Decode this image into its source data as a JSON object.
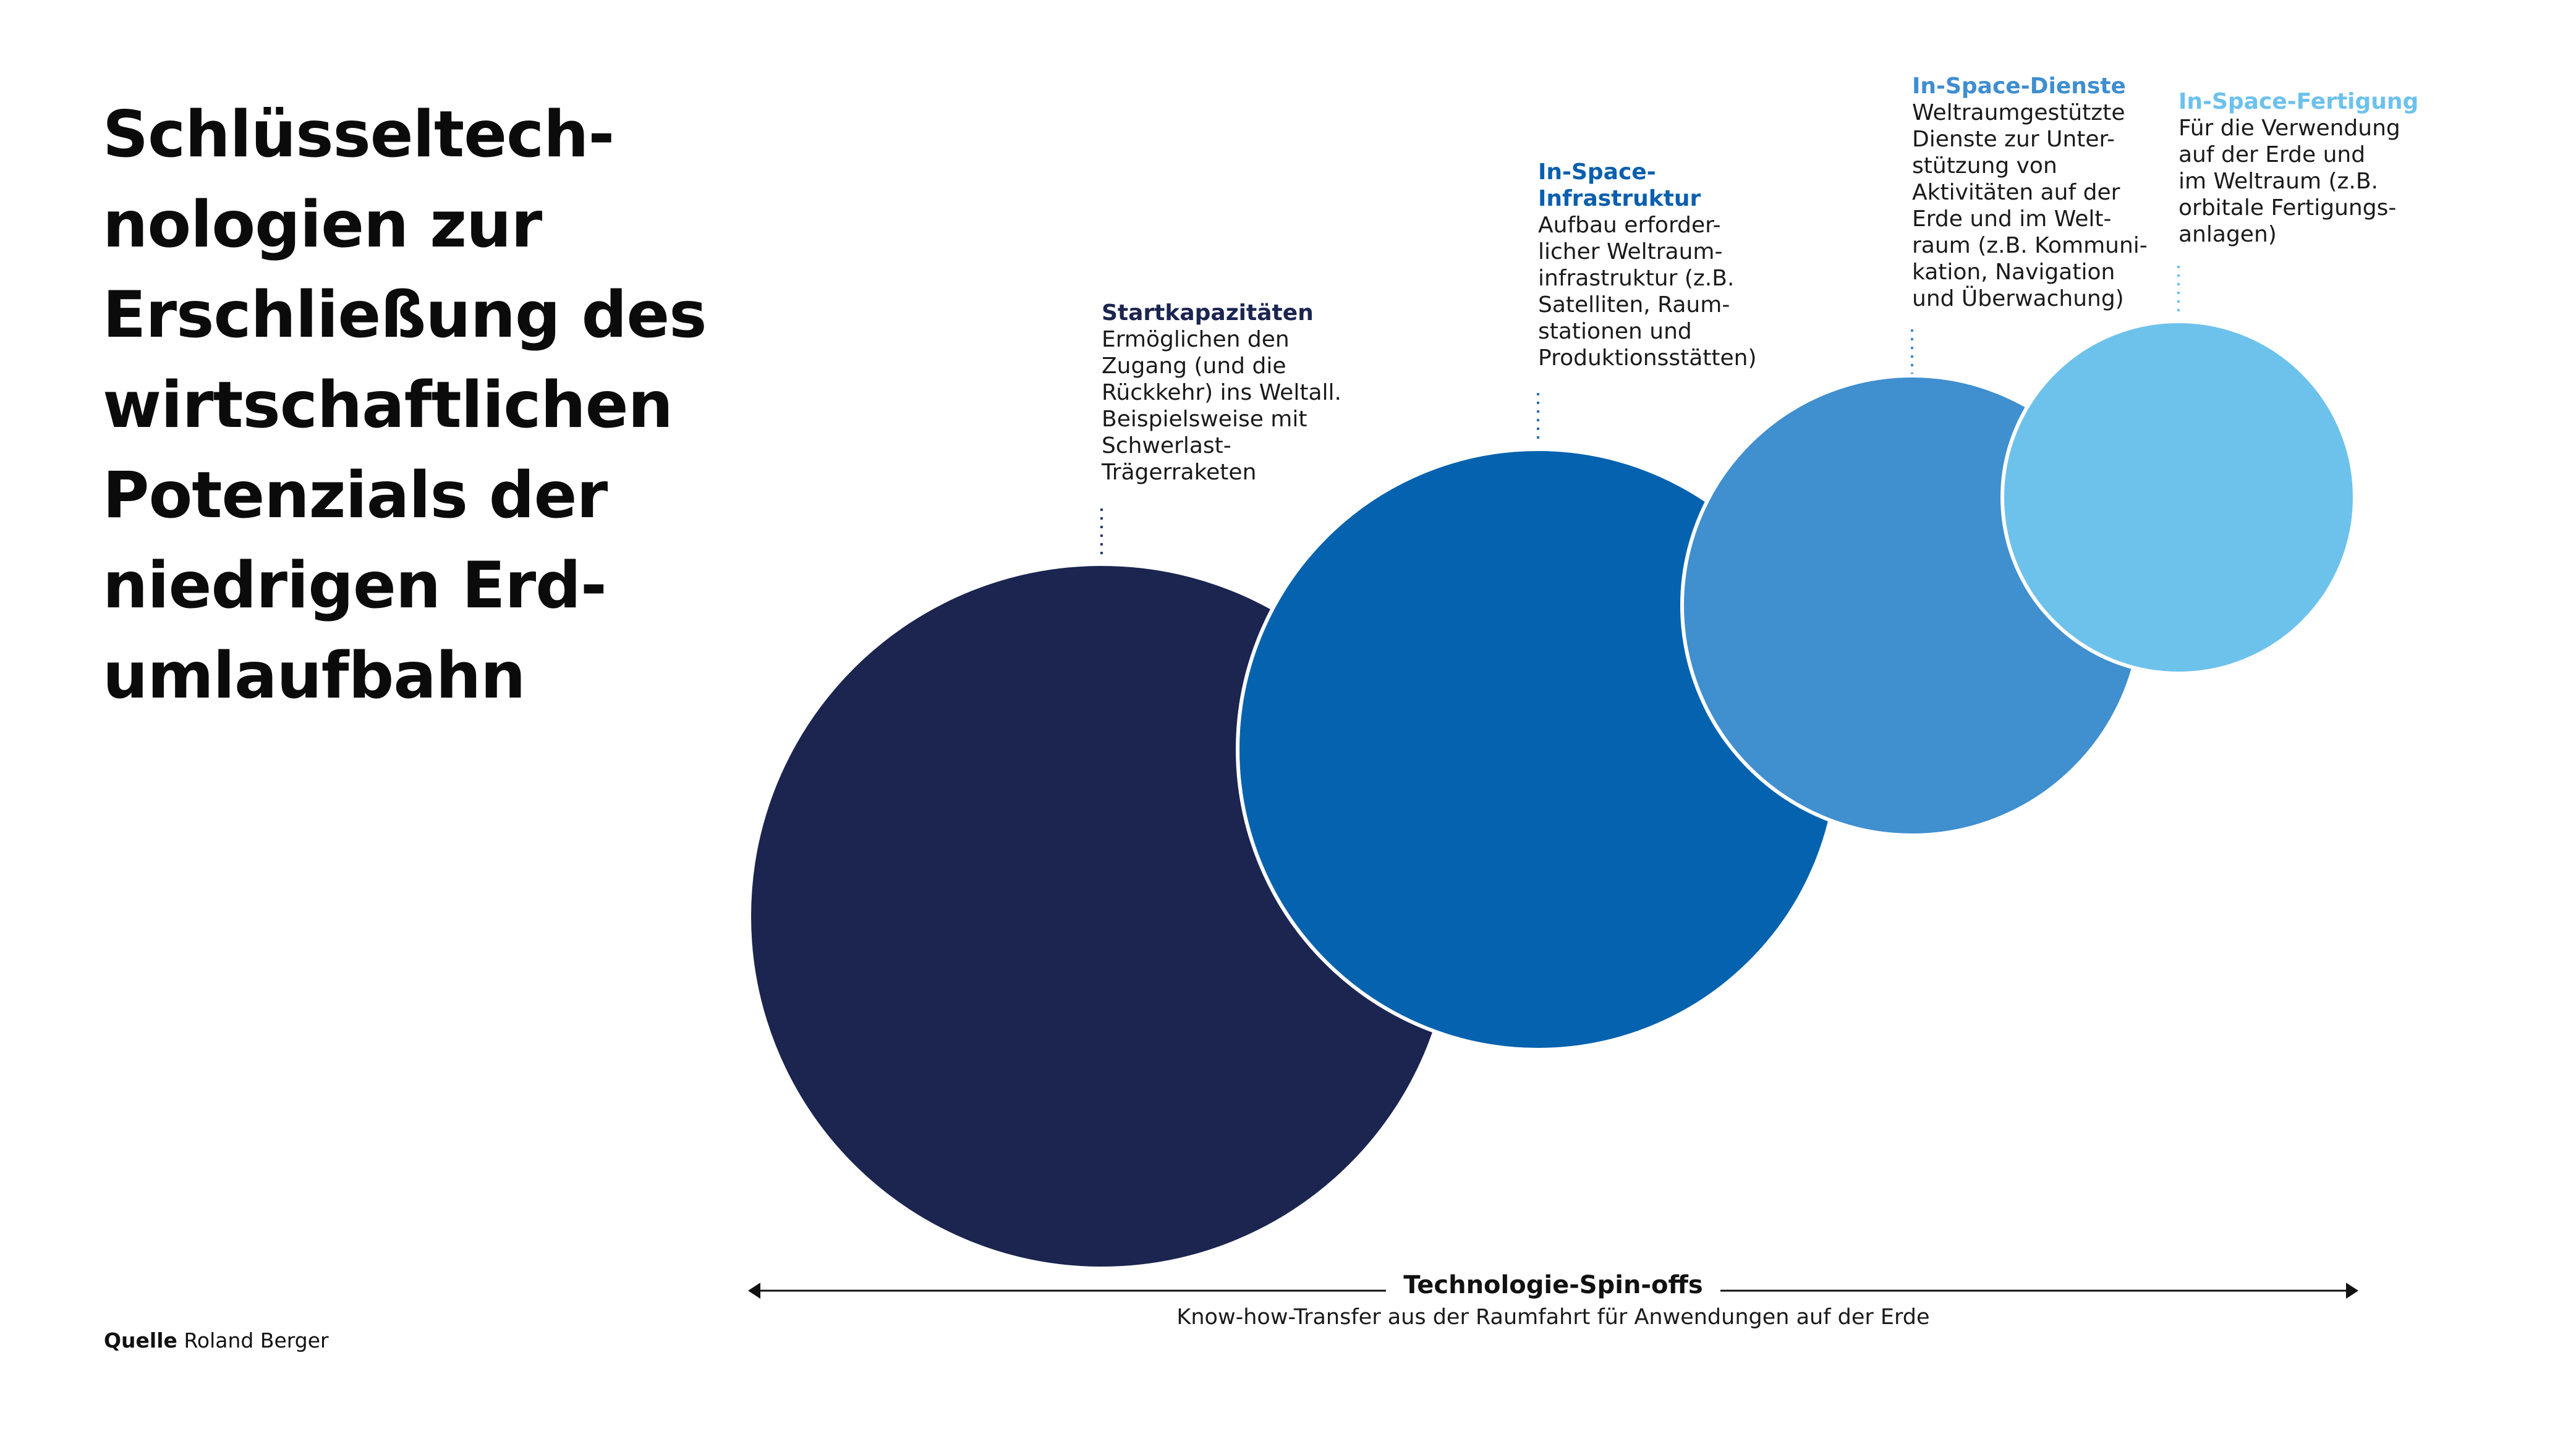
{
  "title_lines": [
    "Schlüsseltech-",
    "nologien zur",
    "Erschließung des",
    "wirtschaftlichen",
    "Potenzials der",
    "niedrigen Erd-",
    "umlaufbahn"
  ],
  "stages": [
    {
      "id": "startkapazitaeten",
      "heading": "Startkapazitäten",
      "heading_color": "#1b2550",
      "circle_color": "#1b2550",
      "lines": [
        "Ermöglichen den",
        "Zugang (und die",
        "Rückkehr) ins Weltall.",
        "Beispielsweise mit",
        "Schwerlast-",
        "Trägerraketen"
      ]
    },
    {
      "id": "in-space-infrastruktur",
      "heading_lines": [
        "In-Space-",
        "Infrastruktur"
      ],
      "heading_color": "#0a5fae",
      "circle_color": "#0562ae",
      "lines": [
        "Aufbau erforder-",
        "licher Weltraum-",
        "infrastruktur (z.B.",
        "Satelliten, Raum-",
        "stationen und",
        "Produktionsstätten)"
      ]
    },
    {
      "id": "in-space-dienste",
      "heading": "In-Space-Dienste",
      "heading_color": "#3f8ecf",
      "circle_color": "#408fcf",
      "lines": [
        "Weltraumgestützte",
        "Dienste zur Unter-",
        "stützung von",
        "Aktivitäten auf der",
        "Erde und im Welt-",
        "raum (z.B. Kommuni-",
        "kation, Navigation",
        "und Überwachung)"
      ]
    },
    {
      "id": "in-space-fertigung",
      "heading": "In-Space-Fertigung",
      "heading_color": "#6dc1ec",
      "circle_color": "#6dc2ec",
      "lines": [
        "Für die Verwendung",
        "auf der Erde und",
        "im Weltraum (z.B.",
        "orbitale Fertigungs-",
        "anlagen)"
      ]
    }
  ],
  "axis": {
    "title": "Technologie-Spin-offs",
    "subtitle": "Know-how-Transfer aus der Raumfahrt für Anwendungen auf der Erde"
  },
  "source": {
    "label": "Quelle",
    "text": "Roland Berger"
  }
}
